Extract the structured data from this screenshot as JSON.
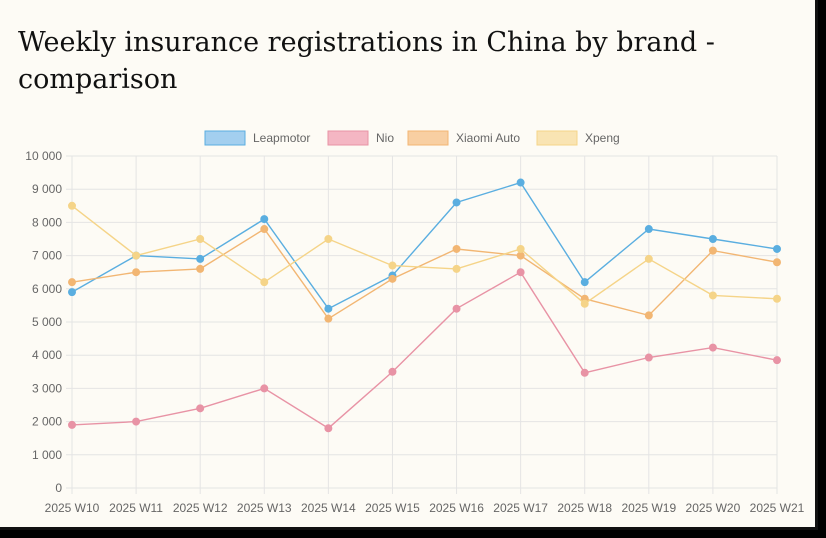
{
  "chart_data": {
    "type": "line",
    "title": "Weekly insurance registrations in China by brand - comparison",
    "categories": [
      "2025 W10",
      "2025 W11",
      "2025 W12",
      "2025 W13",
      "2025 W14",
      "2025 W15",
      "2025 W16",
      "2025 W17",
      "2025 W18",
      "2025 W19",
      "2025 W20",
      "2025 W21"
    ],
    "ylim": [
      0,
      10000
    ],
    "yticks": [
      "0",
      "1 000",
      "2 000",
      "3 000",
      "4 000",
      "5 000",
      "6 000",
      "7 000",
      "8 000",
      "9 000",
      "10 000"
    ],
    "grid": true,
    "legend_position": "top",
    "series": [
      {
        "name": "Leapmotor",
        "color": "#5aaee0",
        "fill": "#a3cfef",
        "values": [
          5900,
          7000,
          6900,
          8100,
          5400,
          6400,
          8600,
          9200,
          6200,
          7800,
          7500,
          7200
        ]
      },
      {
        "name": "Nio",
        "color": "#e893a5",
        "fill": "#f4b6c3",
        "values": [
          1900,
          2000,
          2400,
          3000,
          1800,
          3500,
          5400,
          6500,
          3470,
          3930,
          4230,
          3850
        ]
      },
      {
        "name": "Xiaomi Auto",
        "color": "#f2b673",
        "fill": "#f8cfa2",
        "values": [
          6200,
          6500,
          6600,
          7800,
          5100,
          6300,
          7200,
          7000,
          5700,
          5200,
          7150,
          6800
        ]
      },
      {
        "name": "Xpeng",
        "color": "#f5d488",
        "fill": "#f9e4b3",
        "values": [
          8500,
          7000,
          7500,
          6200,
          7500,
          6700,
          6600,
          7200,
          5550,
          6900,
          5800,
          5700
        ]
      }
    ]
  }
}
